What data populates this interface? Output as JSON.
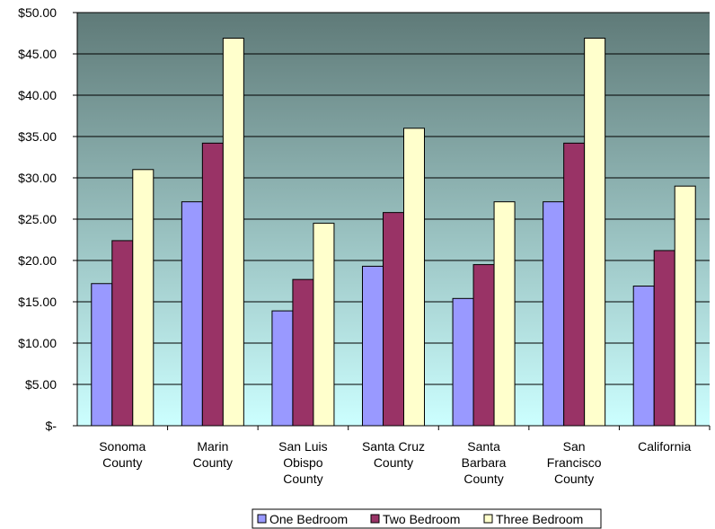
{
  "chart_data": {
    "type": "bar",
    "categories": [
      [
        "Sonoma",
        "County"
      ],
      [
        "Marin",
        "County"
      ],
      [
        "San Luis",
        "Obispo",
        "County"
      ],
      [
        "Santa Cruz",
        "County"
      ],
      [
        "Santa",
        "Barbara",
        "County"
      ],
      [
        "San",
        "Francisco",
        "County"
      ],
      [
        "California"
      ]
    ],
    "series": [
      {
        "name": "One Bedroom",
        "color": "#9999ff",
        "values": [
          17.2,
          27.1,
          13.9,
          19.3,
          15.4,
          27.1,
          16.9
        ]
      },
      {
        "name": "Two Bedroom",
        "color": "#993366",
        "values": [
          22.4,
          34.2,
          17.7,
          25.8,
          19.5,
          34.2,
          21.2
        ]
      },
      {
        "name": "Three Bedroom",
        "color": "#ffffcc",
        "values": [
          31.0,
          46.9,
          24.5,
          36.0,
          27.1,
          46.9,
          29.0
        ]
      }
    ],
    "ylim": [
      0,
      50
    ],
    "yticks": [
      0,
      5,
      10,
      15,
      20,
      25,
      30,
      35,
      40,
      45,
      50
    ],
    "ytick_labels": [
      "$-",
      "$5.00",
      "$10.00",
      "$15.00",
      "$20.00",
      "$25.00",
      "$30.00",
      "$35.00",
      "$40.00",
      "$45.00",
      "$50.00"
    ],
    "grid": true,
    "legend_position": "bottom",
    "background_gradient": [
      "#5f7a78",
      "#ccffff"
    ]
  }
}
